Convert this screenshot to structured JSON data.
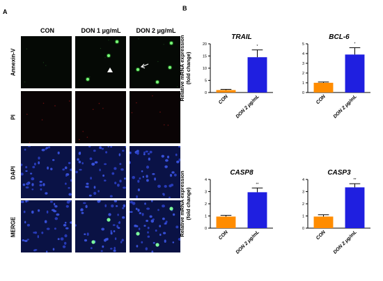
{
  "figure": {
    "panel_a_letter": "A",
    "panel_b_letter": "B",
    "column_headers": [
      "CON",
      "DON 1 μg/mL",
      "DON 2 μg/mL"
    ],
    "row_labels": [
      "Annexin-V",
      "PI",
      "DAPI",
      "MERGE"
    ],
    "row_colors": {
      "Annexin-V": "#050905",
      "PI": "#0a0405",
      "DAPI": "#0a1246",
      "MERGE": "#0a1244"
    }
  },
  "chart_data": [
    {
      "type": "bar",
      "title": "TRAIL",
      "ylabel": "Relative mRNA expression\n(fold change)",
      "categories": [
        "CON",
        "DON 2 μg/mL"
      ],
      "values": [
        1.0,
        14.5
      ],
      "errors": [
        0.3,
        3.0
      ],
      "significance": [
        "",
        "*"
      ],
      "ylim": [
        0,
        20
      ],
      "yticks": [
        "0",
        "5",
        "10",
        "15",
        "20"
      ],
      "colors": [
        "#ff8c00",
        "#1f1fe0"
      ]
    },
    {
      "type": "bar",
      "title": "BCL-6",
      "ylabel": "",
      "categories": [
        "CON",
        "DON 2 μg/mL"
      ],
      "values": [
        1.0,
        3.9
      ],
      "errors": [
        0.08,
        0.7
      ],
      "significance": [
        "",
        "*"
      ],
      "ylim": [
        0,
        5
      ],
      "yticks": [
        "0",
        "1",
        "2",
        "3",
        "4",
        "5"
      ],
      "colors": [
        "#ff8c00",
        "#1f1fe0"
      ]
    },
    {
      "type": "bar",
      "title": "CASP8",
      "ylabel": "Relative mRNA expression\n(fold change)",
      "categories": [
        "CON",
        "DON 2 μg/mL"
      ],
      "values": [
        0.95,
        2.95
      ],
      "errors": [
        0.1,
        0.35
      ],
      "significance": [
        "",
        "**"
      ],
      "ylim": [
        0,
        4
      ],
      "yticks": [
        "0",
        "1",
        "2",
        "3",
        "4"
      ],
      "colors": [
        "#ff8c00",
        "#1f1fe0"
      ]
    },
    {
      "type": "bar",
      "title": "CASP3",
      "ylabel": "",
      "categories": [
        "CON",
        "DON 2 μg/mL"
      ],
      "values": [
        0.95,
        3.35
      ],
      "errors": [
        0.15,
        0.3
      ],
      "significance": [
        "",
        "**"
      ],
      "ylim": [
        0,
        4
      ],
      "yticks": [
        "0",
        "1",
        "2",
        "3",
        "4"
      ],
      "colors": [
        "#ff8c00",
        "#1f1fe0"
      ]
    }
  ]
}
